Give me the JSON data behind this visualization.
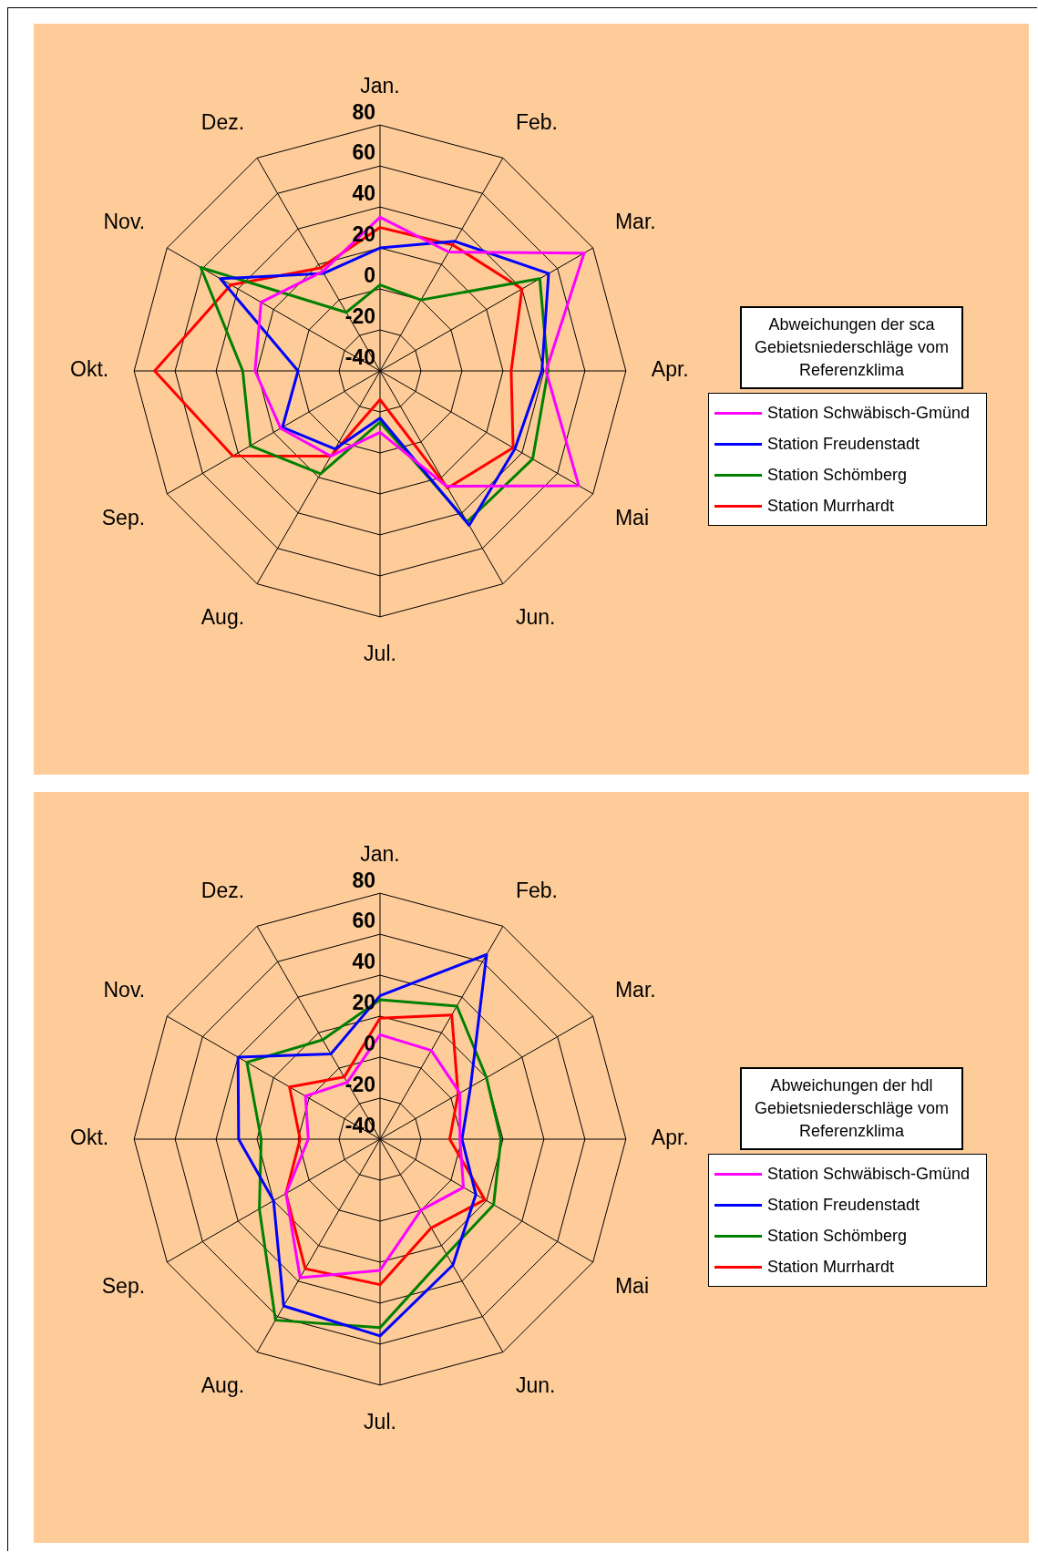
{
  "chart_data": [
    {
      "type": "radar",
      "title": "Abweichungen der sca Gebietsniederschläge vom Referenzklima",
      "categories": [
        "Jan.",
        "Feb.",
        "Mar.",
        "Apr.",
        "Mai",
        "Jun.",
        "Jul.",
        "Aug.",
        "Sep.",
        "Okt.",
        "Nov.",
        "Dez."
      ],
      "ylim": [
        -40,
        80
      ],
      "yticks": [
        -40,
        -20,
        0,
        20,
        40,
        60,
        80
      ],
      "grid": true,
      "legend": "right",
      "marker": "none",
      "series": [
        {
          "name": "Station Schwäbisch-Gmünd",
          "color": "#ff00ff",
          "values": [
            35,
            27,
            75,
            41,
            72,
            25,
            -10,
            8,
            16,
            21,
            27,
            16
          ]
        },
        {
          "name": "Station Freudenstadt",
          "color": "#0000ff",
          "values": [
            20,
            33,
            55,
            39,
            36,
            47,
            -17,
            4,
            15,
            0,
            50,
            15
          ]
        },
        {
          "name": "Station Schömberg",
          "color": "#008000",
          "values": [
            2,
            0,
            50,
            42,
            46,
            45,
            -15,
            18,
            33,
            27,
            61,
            -7
          ]
        },
        {
          "name": "Station Murrhardt",
          "color": "#ff0000",
          "values": [
            30,
            31,
            40,
            24,
            35,
            26,
            -26,
            8,
            43,
            70,
            44,
            18
          ]
        }
      ]
    },
    {
      "type": "radar",
      "title": "Abweichungen der hdl Gebietsniederschläge vom Referenzklima",
      "categories": [
        "Jan.",
        "Feb.",
        "Mar.",
        "Apr.",
        "Mai",
        "Jun.",
        "Jul.",
        "Aug.",
        "Sep.",
        "Okt.",
        "Nov.",
        "Dez."
      ],
      "ylim": [
        -40,
        80
      ],
      "yticks": [
        -40,
        -20,
        0,
        20,
        40,
        60,
        80
      ],
      "grid": true,
      "legend": "right",
      "marker": "none",
      "series": [
        {
          "name": "Station Schwäbisch-Gmünd",
          "color": "#ff00ff",
          "values": [
            11,
            10,
            5,
            -1,
            7,
            0,
            24,
            38,
            13,
            -5,
            2,
            -8
          ]
        },
        {
          "name": "Station Freudenstadt",
          "color": "#0000ff",
          "values": [
            30,
            64,
            11,
            0,
            14,
            31,
            56,
            54,
            20,
            29,
            40,
            8
          ]
        },
        {
          "name": "Station Schömberg",
          "color": "#008000",
          "values": [
            28,
            35,
            20,
            19,
            24,
            25,
            52,
            62,
            28,
            18,
            35,
            16
          ]
        },
        {
          "name": "Station Murrhardt",
          "color": "#ff0000",
          "values": [
            19,
            30,
            4,
            -6,
            19,
            10,
            31,
            33,
            13,
            -1,
            11,
            -5
          ]
        }
      ]
    }
  ]
}
